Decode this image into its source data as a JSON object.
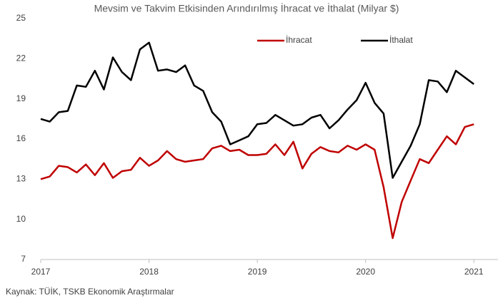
{
  "chart_data": {
    "type": "line",
    "title": "Mevsim ve Takvim Etkisinden Arındırılmış İhracat ve İthalat (Milyar $)",
    "source": "Kaynak: TÜİK, TSKB Ekonomik Araştırmalar",
    "categories": [
      "2017",
      null,
      null,
      null,
      null,
      null,
      null,
      null,
      null,
      null,
      null,
      null,
      "2018",
      null,
      null,
      null,
      null,
      null,
      null,
      null,
      null,
      null,
      null,
      null,
      "2019",
      null,
      null,
      null,
      null,
      null,
      null,
      null,
      null,
      null,
      null,
      null,
      "2020",
      null,
      null,
      null,
      null,
      null,
      null,
      null,
      null,
      null,
      null,
      null,
      "2021"
    ],
    "series": [
      {
        "name": "İhracat",
        "color": "#c00000",
        "values": [
          13.0,
          13.2,
          14.0,
          13.9,
          13.5,
          14.1,
          13.3,
          14.2,
          13.1,
          13.6,
          13.7,
          14.6,
          14.0,
          14.4,
          15.1,
          14.5,
          14.3,
          14.4,
          14.5,
          15.3,
          15.5,
          15.1,
          15.2,
          14.8,
          14.8,
          14.9,
          15.6,
          14.8,
          15.8,
          13.8,
          14.9,
          15.4,
          15.1,
          15.0,
          15.5,
          15.2,
          15.6,
          15.2,
          12.4,
          8.6,
          11.3,
          12.9,
          14.5,
          14.2,
          15.2,
          16.2,
          15.6,
          16.9,
          17.1
        ]
      },
      {
        "name": "İthalat",
        "color": "#000000",
        "values": [
          17.5,
          17.3,
          18.0,
          18.1,
          20.0,
          19.9,
          21.1,
          19.7,
          22.1,
          21.0,
          20.4,
          22.7,
          23.2,
          21.1,
          21.2,
          21.0,
          21.5,
          20.0,
          19.6,
          18.0,
          17.3,
          15.6,
          15.9,
          16.2,
          17.1,
          17.2,
          17.8,
          17.4,
          17.0,
          17.1,
          17.6,
          17.8,
          16.8,
          17.4,
          18.2,
          18.9,
          20.2,
          18.7,
          17.9,
          13.1,
          14.3,
          15.5,
          17.1,
          20.4,
          20.3,
          19.5,
          21.1,
          20.6,
          20.1
        ]
      }
    ],
    "ylim": [
      7,
      25
    ],
    "yticks": [
      7,
      10,
      13,
      16,
      19,
      22,
      25
    ],
    "grid": false
  }
}
